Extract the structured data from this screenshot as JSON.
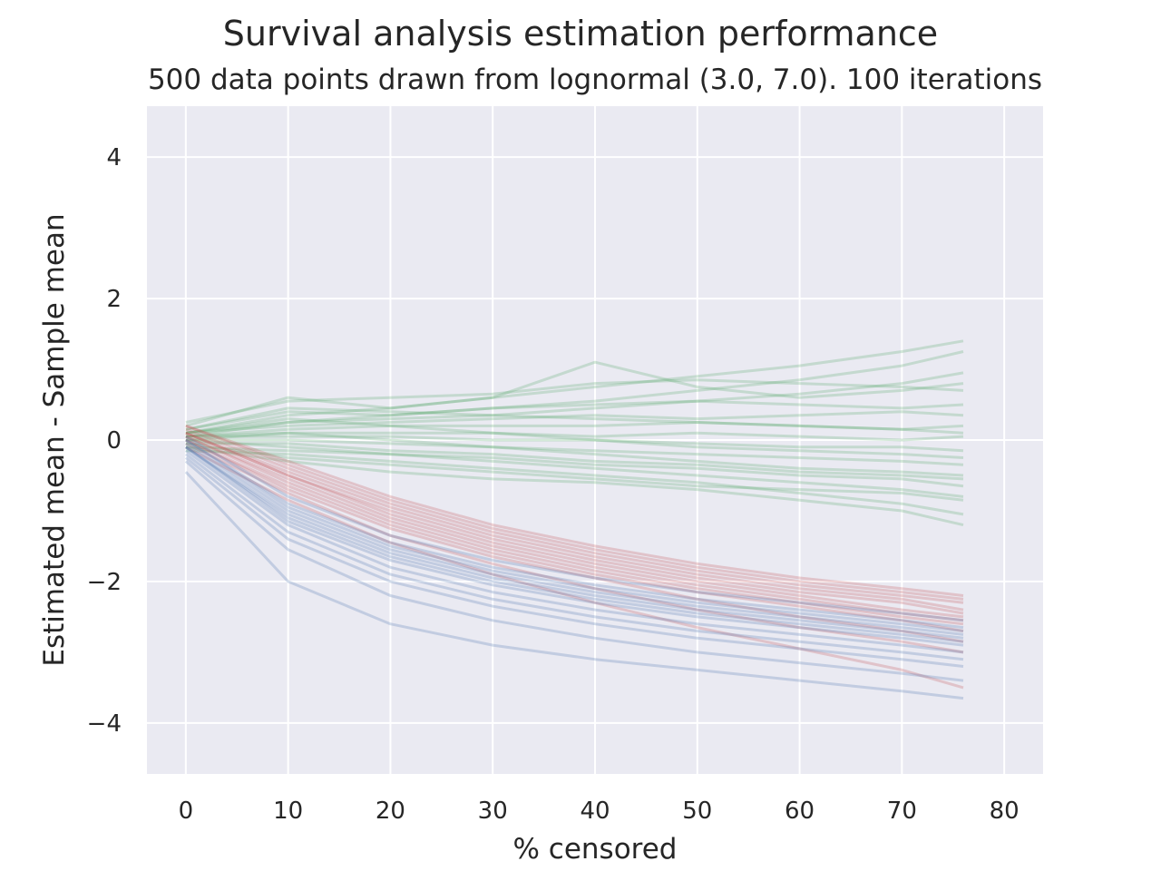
{
  "chart_data": {
    "type": "line",
    "title": "Survival analysis estimation performance",
    "subtitle": "500 data points drawn from lognormal (3.0, 7.0). 100 iterations",
    "xlabel": "% censored",
    "ylabel": "Estimated mean - Sample mean",
    "xlim": [
      -3.8,
      83.8
    ],
    "ylim": [
      -4.72,
      4.72
    ],
    "xticks": [
      0,
      10,
      20,
      30,
      40,
      50,
      60,
      70,
      80
    ],
    "xtick_labels": [
      "0",
      "10",
      "20",
      "30",
      "40",
      "50",
      "60",
      "70",
      "80"
    ],
    "yticks": [
      -4,
      -2,
      0,
      2,
      4
    ],
    "ytick_labels": [
      "−4",
      "−2",
      "0",
      "2",
      "4"
    ],
    "grid": true,
    "background": "#eaeaf2",
    "line_alpha": 0.25,
    "x": [
      0,
      10,
      20,
      30,
      40,
      50,
      60,
      70,
      76
    ],
    "series": [
      {
        "color": "#55a868",
        "lines": [
          [
            0.1,
            0.35,
            0.45,
            0.6,
            0.75,
            0.9,
            1.05,
            1.25,
            1.4
          ],
          [
            0.05,
            0.25,
            0.35,
            0.45,
            0.55,
            0.7,
            0.85,
            1.05,
            1.25
          ],
          [
            0.2,
            0.6,
            0.45,
            0.6,
            1.1,
            0.75,
            0.6,
            0.7,
            0.8
          ],
          [
            0.15,
            0.4,
            0.35,
            0.45,
            0.5,
            0.55,
            0.5,
            0.45,
            0.5
          ],
          [
            0.1,
            0.2,
            0.25,
            0.3,
            0.35,
            0.3,
            0.35,
            0.4,
            0.35
          ],
          [
            0.05,
            0.15,
            0.2,
            0.2,
            0.2,
            0.25,
            0.2,
            0.15,
            0.2
          ],
          [
            0.0,
            0.1,
            0.1,
            0.1,
            0.05,
            0.1,
            0.05,
            0.0,
            0.05
          ],
          [
            0.05,
            0.05,
            0.05,
            0.0,
            0.0,
            -0.05,
            -0.1,
            -0.1,
            -0.15
          ],
          [
            0.0,
            0.0,
            -0.05,
            -0.1,
            -0.15,
            -0.2,
            -0.25,
            -0.3,
            -0.35
          ],
          [
            -0.05,
            -0.05,
            -0.15,
            -0.2,
            -0.3,
            -0.35,
            -0.45,
            -0.5,
            -0.55
          ],
          [
            -0.1,
            -0.15,
            -0.2,
            -0.3,
            -0.4,
            -0.5,
            -0.6,
            -0.7,
            -0.8
          ],
          [
            -0.15,
            -0.2,
            -0.3,
            -0.4,
            -0.5,
            -0.6,
            -0.75,
            -0.9,
            -1.05
          ],
          [
            -0.1,
            -0.3,
            -0.45,
            -0.55,
            -0.6,
            -0.7,
            -0.85,
            -1.0,
            -1.2
          ],
          [
            0.25,
            0.55,
            0.6,
            0.65,
            0.8,
            0.85,
            0.8,
            0.75,
            0.7
          ],
          [
            0.1,
            0.3,
            0.2,
            0.1,
            0.0,
            -0.1,
            -0.15,
            -0.2,
            -0.25
          ],
          [
            -0.05,
            -0.25,
            -0.35,
            -0.45,
            -0.55,
            -0.65,
            -0.7,
            -0.75,
            -0.85
          ],
          [
            0.15,
            0.45,
            0.4,
            0.35,
            0.3,
            0.25,
            0.2,
            0.15,
            0.1
          ],
          [
            0.05,
            0.1,
            0.0,
            -0.1,
            -0.2,
            -0.3,
            -0.4,
            -0.45,
            -0.5
          ],
          [
            0.1,
            0.25,
            0.3,
            0.35,
            0.45,
            0.55,
            0.65,
            0.8,
            0.95
          ],
          [
            0.0,
            -0.1,
            -0.2,
            -0.25,
            -0.35,
            -0.4,
            -0.5,
            -0.55,
            -0.65
          ]
        ]
      },
      {
        "color": "#c44e52",
        "lines": [
          [
            0.2,
            -0.3,
            -0.8,
            -1.2,
            -1.5,
            -1.75,
            -1.95,
            -2.1,
            -2.2
          ],
          [
            0.15,
            -0.4,
            -0.9,
            -1.3,
            -1.6,
            -1.85,
            -2.05,
            -2.2,
            -2.3
          ],
          [
            0.1,
            -0.5,
            -1.0,
            -1.4,
            -1.7,
            -1.95,
            -2.15,
            -2.3,
            -2.45
          ],
          [
            0.05,
            -0.55,
            -1.1,
            -1.5,
            -1.8,
            -2.05,
            -2.25,
            -2.45,
            -2.55
          ],
          [
            0.0,
            -0.65,
            -1.2,
            -1.6,
            -1.9,
            -2.15,
            -2.35,
            -2.55,
            -2.7
          ],
          [
            0.1,
            -0.45,
            -0.95,
            -1.35,
            -1.65,
            -1.9,
            -2.1,
            -2.25,
            -2.4
          ],
          [
            0.2,
            -0.35,
            -0.85,
            -1.25,
            -1.55,
            -1.8,
            -2.0,
            -2.15,
            -2.25
          ],
          [
            -0.05,
            -0.75,
            -1.35,
            -1.75,
            -2.1,
            -2.4,
            -2.65,
            -2.85,
            -3.0
          ],
          [
            0.0,
            -0.7,
            -1.25,
            -1.65,
            -1.95,
            -2.25,
            -2.5,
            -2.7,
            -2.85
          ],
          [
            0.1,
            -0.5,
            -1.05,
            -1.45,
            -1.75,
            -2.0,
            -2.2,
            -2.4,
            -2.5
          ],
          [
            0.05,
            -0.6,
            -1.15,
            -1.55,
            -1.85,
            -2.1,
            -2.3,
            -2.5,
            -2.6
          ],
          [
            -0.1,
            -0.85,
            -1.45,
            -1.9,
            -2.3,
            -2.65,
            -2.95,
            -3.25,
            -3.5
          ]
        ]
      },
      {
        "color": "#4c72b0",
        "lines": [
          [
            -0.1,
            -1.1,
            -1.65,
            -2.0,
            -2.25,
            -2.45,
            -2.6,
            -2.75,
            -2.85
          ],
          [
            -0.05,
            -1.0,
            -1.55,
            -1.9,
            -2.15,
            -2.35,
            -2.5,
            -2.65,
            -2.75
          ],
          [
            -0.15,
            -1.2,
            -1.8,
            -2.15,
            -2.4,
            -2.6,
            -2.75,
            -2.9,
            -3.0
          ],
          [
            -0.2,
            -1.3,
            -1.9,
            -2.25,
            -2.5,
            -2.7,
            -2.85,
            -3.0,
            -3.1
          ],
          [
            0.0,
            -0.9,
            -1.45,
            -1.8,
            -2.05,
            -2.25,
            -2.4,
            -2.55,
            -2.65
          ],
          [
            -0.1,
            -1.15,
            -1.7,
            -2.05,
            -2.3,
            -2.5,
            -2.65,
            -2.8,
            -2.9
          ],
          [
            0.05,
            -0.8,
            -1.35,
            -1.7,
            -1.95,
            -2.15,
            -2.3,
            -2.45,
            -2.55
          ],
          [
            -0.25,
            -1.4,
            -2.0,
            -2.35,
            -2.6,
            -2.8,
            -2.95,
            -3.1,
            -3.2
          ],
          [
            -0.1,
            -1.05,
            -1.6,
            -1.95,
            -2.2,
            -2.4,
            -2.55,
            -2.7,
            -2.8
          ],
          [
            -0.3,
            -1.55,
            -2.2,
            -2.55,
            -2.8,
            -3.0,
            -3.15,
            -3.3,
            -3.4
          ],
          [
            0.0,
            -0.95,
            -1.5,
            -1.85,
            -2.1,
            -2.3,
            -2.45,
            -2.6,
            -2.7
          ],
          [
            -0.45,
            -2.0,
            -2.6,
            -2.9,
            -3.1,
            -3.25,
            -3.4,
            -3.55,
            -3.65
          ]
        ]
      }
    ]
  }
}
